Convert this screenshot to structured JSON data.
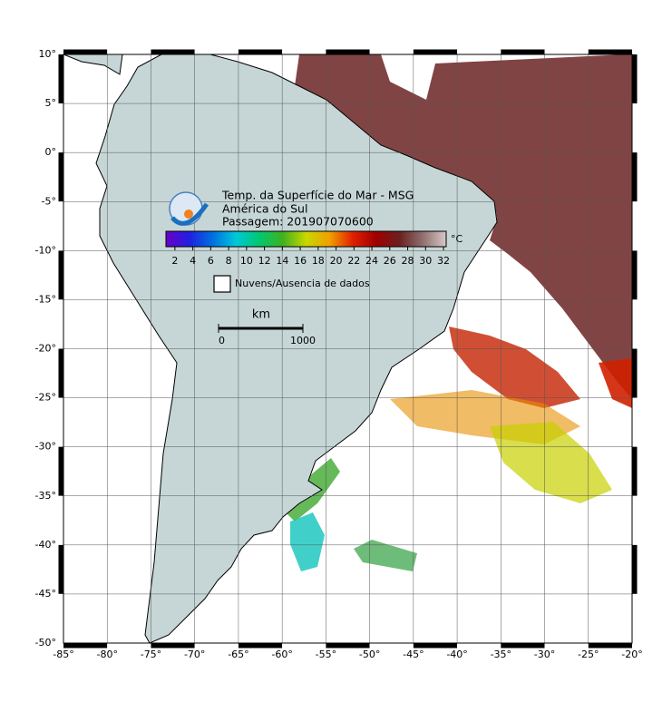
{
  "map": {
    "title_lines": [
      "Temp. da Superfície do Mar - MSG",
      "América do Sul",
      "Passagem: 201907070600"
    ],
    "xlim": [
      -85,
      -20
    ],
    "ylim": [
      -50,
      10
    ],
    "xticks": [
      {
        "value": -85,
        "label": "-85°"
      },
      {
        "value": -80,
        "label": "-80°"
      },
      {
        "value": -75,
        "label": "-75°"
      },
      {
        "value": -70,
        "label": "-70°"
      },
      {
        "value": -65,
        "label": "-65°"
      },
      {
        "value": -60,
        "label": "-60°"
      },
      {
        "value": -55,
        "label": "-55°"
      },
      {
        "value": -50,
        "label": "-50°"
      },
      {
        "value": -45,
        "label": "-45°"
      },
      {
        "value": -40,
        "label": "-40°"
      },
      {
        "value": -35,
        "label": "-35°"
      },
      {
        "value": -30,
        "label": "-30°"
      },
      {
        "value": -25,
        "label": "-25°"
      },
      {
        "value": -20,
        "label": "-20°"
      }
    ],
    "yticks": [
      {
        "value": 10,
        "label": "10°"
      },
      {
        "value": 5,
        "label": "5°"
      },
      {
        "value": 0,
        "label": "0°"
      },
      {
        "value": -5,
        "label": "-5°"
      },
      {
        "value": -10,
        "label": "-10°"
      },
      {
        "value": -15,
        "label": "-15°"
      },
      {
        "value": -20,
        "label": "-20°"
      },
      {
        "value": -25,
        "label": "-25°"
      },
      {
        "value": -30,
        "label": "-30°"
      },
      {
        "value": -35,
        "label": "-35°"
      },
      {
        "value": -40,
        "label": "-40°"
      },
      {
        "value": -45,
        "label": "-45°"
      },
      {
        "value": -50,
        "label": "-50°"
      }
    ],
    "grid": true,
    "colorbar": {
      "unit": "°C",
      "lim": [
        1,
        32.3
      ],
      "ticks": [
        2,
        4,
        6,
        8,
        10,
        12,
        14,
        16,
        18,
        20,
        22,
        24,
        26,
        28,
        30,
        32
      ],
      "colors": [
        "#6a00c8",
        "#2020e0",
        "#0070e0",
        "#00c8d8",
        "#00c870",
        "#40b020",
        "#c8d800",
        "#f0a000",
        "#e02000",
        "#a00000",
        "#6a2020",
        "#907070",
        "#d8c8c8"
      ]
    },
    "legend": "Nuvens/Ausencia de dados",
    "scale_bar": {
      "unit": "km",
      "ticks": [
        0,
        1000
      ]
    }
  }
}
